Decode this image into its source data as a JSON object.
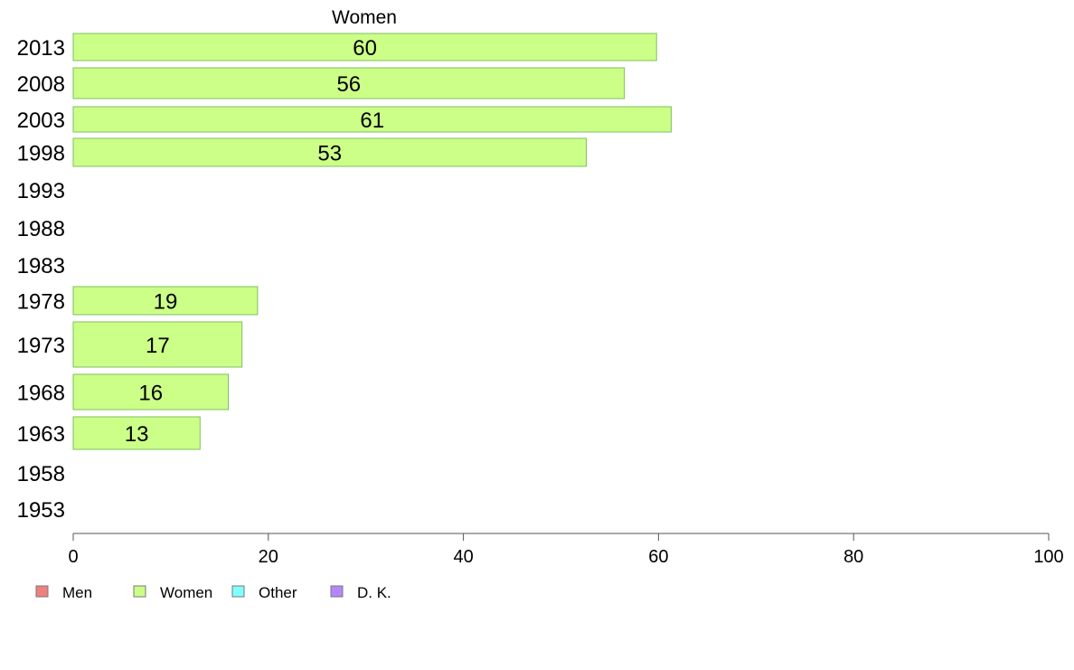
{
  "chart_data": {
    "type": "bar",
    "orientation": "horizontal",
    "title": "Women",
    "categories": [
      "2013",
      "2008",
      "2003",
      "1998",
      "1993",
      "1988",
      "1983",
      "1978",
      "1973",
      "1968",
      "1963",
      "1958",
      "1953"
    ],
    "series": [
      {
        "name": "Women",
        "values": [
          60,
          56,
          61,
          53,
          null,
          null,
          null,
          19,
          17,
          16,
          13,
          null,
          null
        ],
        "labels": [
          "60",
          "56",
          "61",
          "53",
          "",
          "",
          "",
          "19",
          "17",
          "16",
          "13",
          "",
          ""
        ]
      }
    ],
    "bar_values_exact": [
      59.8,
      56.5,
      61.3,
      52.6,
      null,
      null,
      null,
      18.9,
      17.3,
      15.9,
      13.0,
      null,
      null
    ],
    "xlim": [
      0,
      100
    ],
    "xticks": [
      "0",
      "20",
      "40",
      "60",
      "80",
      "100"
    ],
    "xlabel": "",
    "ylabel": "",
    "grid": false,
    "legend": {
      "placement": "bottom-left",
      "items": [
        {
          "label": "Men",
          "color": "#f08080"
        },
        {
          "label": "Women",
          "color": "#ccff88"
        },
        {
          "label": "Other",
          "color": "#80ffff"
        },
        {
          "label": "D. K.",
          "color": "#b388ff"
        }
      ]
    },
    "colors": {
      "bar_fill": "#ccff88",
      "bar_stroke": "#7fbf5f",
      "axis": "#555555"
    }
  }
}
